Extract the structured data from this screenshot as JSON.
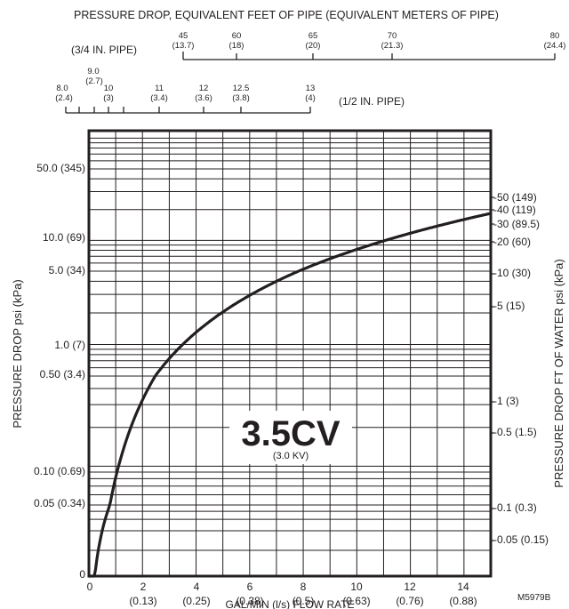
{
  "chart_data": {
    "type": "line",
    "title": "PRESSURE DROP, EQUIVALENT FEET OF PIPE (EQUIVALENT METERS OF PIPE)",
    "center_label": "3.5CV",
    "center_sublabel": "(3.0 KV)",
    "xlabel": "GAL/MIN (l/s) FLOW RATE",
    "ylabel_left": "PRESSURE DROP psi (kPa)",
    "ylabel_right": "PRESSURE DROP FT OF WATER psi (kPa)",
    "figure_id": "M5979B",
    "xlim": [
      0,
      15
    ],
    "x_ticks": [
      {
        "value": 0,
        "label": "0",
        "sub": ""
      },
      {
        "value": 2,
        "label": "2",
        "sub": "(0.13)"
      },
      {
        "value": 4,
        "label": "4",
        "sub": "(0.25)"
      },
      {
        "value": 6,
        "label": "6",
        "sub": "(0.38)"
      },
      {
        "value": 8,
        "label": "8",
        "sub": "(0.5)"
      },
      {
        "value": 10,
        "label": "10",
        "sub": "(0.63)"
      },
      {
        "value": 12,
        "label": "12",
        "sub": "(0.76)"
      },
      {
        "value": 14,
        "label": "14",
        "sub": "(0.88)"
      }
    ],
    "left_ticks": [
      {
        "value": 50.0,
        "label": "50.0 (345)"
      },
      {
        "value": 10.0,
        "label": "10.0 (69)"
      },
      {
        "value": 5.0,
        "label": "5.0 (34)"
      },
      {
        "value": 1.0,
        "label": "1.0 (7)"
      },
      {
        "value": 0.5,
        "label": "0.50 (3.4)"
      },
      {
        "value": 0.1,
        "label": "0.10 (0.69)"
      },
      {
        "value": 0.05,
        "label": "0.05 (0.34)"
      },
      {
        "value": 0,
        "label": "0"
      }
    ],
    "right_ticks": [
      {
        "label": "-50 (149)"
      },
      {
        "label": "-40 (119)"
      },
      {
        "label": "-30 (89.5)"
      },
      {
        "label": "-20 (60)"
      },
      {
        "label": "-10 (30)"
      },
      {
        "label": "-5 (15)"
      },
      {
        "label": "-1 (3)"
      },
      {
        "label": "-0.5 (1.5)"
      },
      {
        "label": "-0.1 (0.3)"
      },
      {
        "label": "-0.05 (0.15)"
      }
    ],
    "pipe_34": {
      "label": "(3/4 IN. PIPE)",
      "ticks": [
        {
          "label": "45",
          "sub": "(13.7)"
        },
        {
          "label": "60",
          "sub": "(18)"
        },
        {
          "label": "65",
          "sub": "(20)"
        },
        {
          "label": "70",
          "sub": "(21.3)"
        },
        {
          "label": "80",
          "sub": "(24.4)"
        }
      ]
    },
    "pipe_12": {
      "label": "(1/2 IN. PIPE)",
      "ticks": [
        {
          "label": "8.0",
          "sub": "(2.4)"
        },
        {
          "label": "9.0",
          "sub": "(2.7)"
        },
        {
          "label": "10",
          "sub": "(3)"
        },
        {
          "label": "11",
          "sub": "(3.4)"
        },
        {
          "label": "12",
          "sub": "(3.6)"
        },
        {
          "label": "12.5",
          "sub": "(3.8)"
        },
        {
          "label": "13",
          "sub": "(4)"
        }
      ]
    },
    "series": [
      {
        "x": [
          0,
          0.25,
          0.5,
          1,
          1.5,
          2,
          3,
          4,
          5,
          6,
          7,
          8,
          9,
          10,
          11,
          12,
          13,
          14,
          15
        ],
        "y": [
          0,
          0.006,
          0.02,
          0.08,
          0.19,
          0.33,
          0.74,
          1.3,
          2.1,
          2.9,
          3.9,
          5.2,
          6.6,
          8.2,
          9.8,
          11.8,
          13.8,
          16.0,
          18.4
        ]
      }
    ]
  }
}
